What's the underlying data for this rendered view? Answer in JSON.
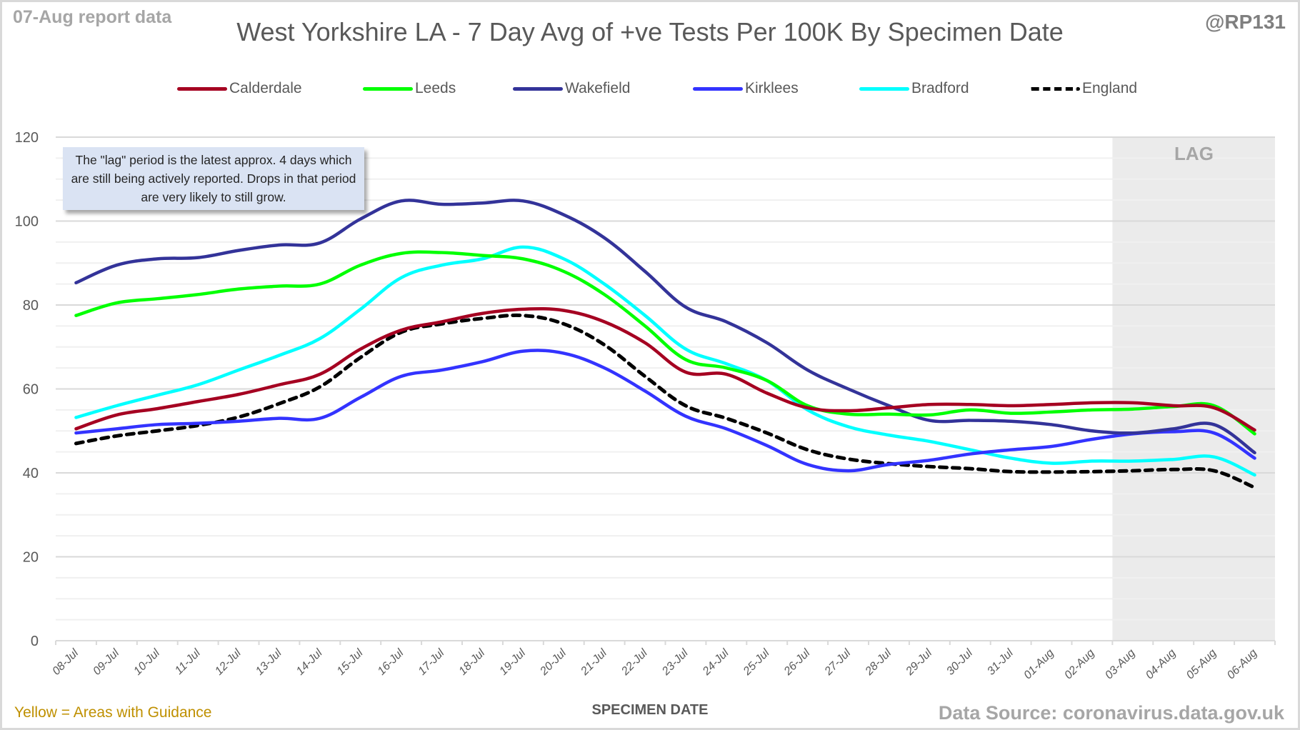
{
  "header": {
    "report_date": "07-Aug report data",
    "handle": "@RP131"
  },
  "footer": {
    "guidance_note": "Yellow = Areas with Guidance",
    "source": "Data Source: coronavirus.data.gov.uk"
  },
  "annotation": "The \"lag\" period is the latest approx. 4 days which are still being actively reported. Drops in that period are very likely to still grow.",
  "lag_label": "LAG",
  "chart_data": {
    "type": "line",
    "title": "West Yorkshire LA - 7 Day Avg of +ve Tests Per 100K By Specimen Date",
    "xlabel": "SPECIMEN DATE",
    "ylabel": "",
    "ylim": [
      0,
      120
    ],
    "yticks": [
      0,
      20,
      40,
      60,
      80,
      100,
      120
    ],
    "ytick_labels": [
      "0",
      "20",
      "40",
      "60",
      "80",
      "100",
      "120"
    ],
    "grid": true,
    "legend_position": "top",
    "lag_region": {
      "from": "03-Aug",
      "to": "06-Aug",
      "label": "LAG"
    },
    "categories": [
      "08-Jul",
      "09-Jul",
      "10-Jul",
      "11-Jul",
      "12-Jul",
      "13-Jul",
      "14-Jul",
      "15-Jul",
      "16-Jul",
      "17-Jul",
      "18-Jul",
      "19-Jul",
      "20-Jul",
      "21-Jul",
      "22-Jul",
      "23-Jul",
      "24-Jul",
      "25-Jul",
      "26-Jul",
      "27-Jul",
      "28-Jul",
      "29-Jul",
      "30-Jul",
      "31-Jul",
      "01-Aug",
      "02-Aug",
      "03-Aug",
      "04-Aug",
      "05-Aug",
      "06-Aug"
    ],
    "series": [
      {
        "name": "Calderdale",
        "color": "#a50021",
        "dashed": false,
        "values": [
          50.5,
          53.8,
          55.3,
          57.0,
          58.7,
          61.0,
          63.5,
          69.5,
          74.0,
          76.0,
          78.0,
          79.0,
          78.7,
          76.0,
          71.0,
          64.0,
          63.5,
          59.0,
          55.5,
          54.8,
          55.5,
          56.3,
          56.3,
          56.0,
          56.3,
          56.7,
          56.7,
          56.0,
          55.5,
          50.2
        ]
      },
      {
        "name": "Leeds",
        "color": "#00ff00",
        "dashed": false,
        "values": [
          77.5,
          80.5,
          81.5,
          82.5,
          83.8,
          84.5,
          85.0,
          89.5,
          92.3,
          92.5,
          91.8,
          91.0,
          88.0,
          82.5,
          75.0,
          67.0,
          65.0,
          62.0,
          56.0,
          54.0,
          54.0,
          53.8,
          55.0,
          54.2,
          54.5,
          55.0,
          55.2,
          55.8,
          56.0,
          49.3
        ]
      },
      {
        "name": "Wakefield",
        "color": "#333399",
        "dashed": false,
        "values": [
          85.3,
          89.5,
          91.0,
          91.3,
          93.0,
          94.3,
          94.8,
          100.5,
          104.8,
          104.0,
          104.3,
          104.8,
          101.5,
          96.0,
          88.0,
          79.5,
          76.0,
          71.0,
          64.5,
          60.0,
          56.0,
          52.5,
          52.5,
          52.3,
          51.5,
          50.0,
          49.5,
          50.5,
          51.5,
          44.8
        ]
      },
      {
        "name": "Kirklees",
        "color": "#3333ff",
        "dashed": false,
        "values": [
          49.5,
          50.5,
          51.5,
          51.8,
          52.3,
          53.0,
          53.0,
          58.0,
          63.0,
          64.5,
          66.5,
          69.0,
          68.5,
          65.0,
          59.5,
          53.5,
          50.5,
          46.5,
          42.0,
          40.5,
          42.0,
          43.0,
          44.5,
          45.5,
          46.3,
          48.0,
          49.3,
          49.8,
          49.5,
          43.5
        ]
      },
      {
        "name": "Bradford",
        "color": "#00ffff",
        "dashed": false,
        "values": [
          53.2,
          56.0,
          58.5,
          61.0,
          64.5,
          68.0,
          72.0,
          79.0,
          86.5,
          89.5,
          91.0,
          93.8,
          91.0,
          85.0,
          77.5,
          69.5,
          66.0,
          62.0,
          55.0,
          51.0,
          49.0,
          47.5,
          45.5,
          43.5,
          42.3,
          42.8,
          42.8,
          43.2,
          43.8,
          39.5
        ]
      },
      {
        "name": "England",
        "color": "#000000",
        "dashed": true,
        "values": [
          47.0,
          48.8,
          50.0,
          51.3,
          53.3,
          56.5,
          60.5,
          67.5,
          73.5,
          75.5,
          76.8,
          77.5,
          75.5,
          70.5,
          63.0,
          56.0,
          53.0,
          49.5,
          45.5,
          43.3,
          42.2,
          41.5,
          41.0,
          40.3,
          40.2,
          40.3,
          40.5,
          40.8,
          40.5,
          36.5
        ]
      }
    ]
  }
}
